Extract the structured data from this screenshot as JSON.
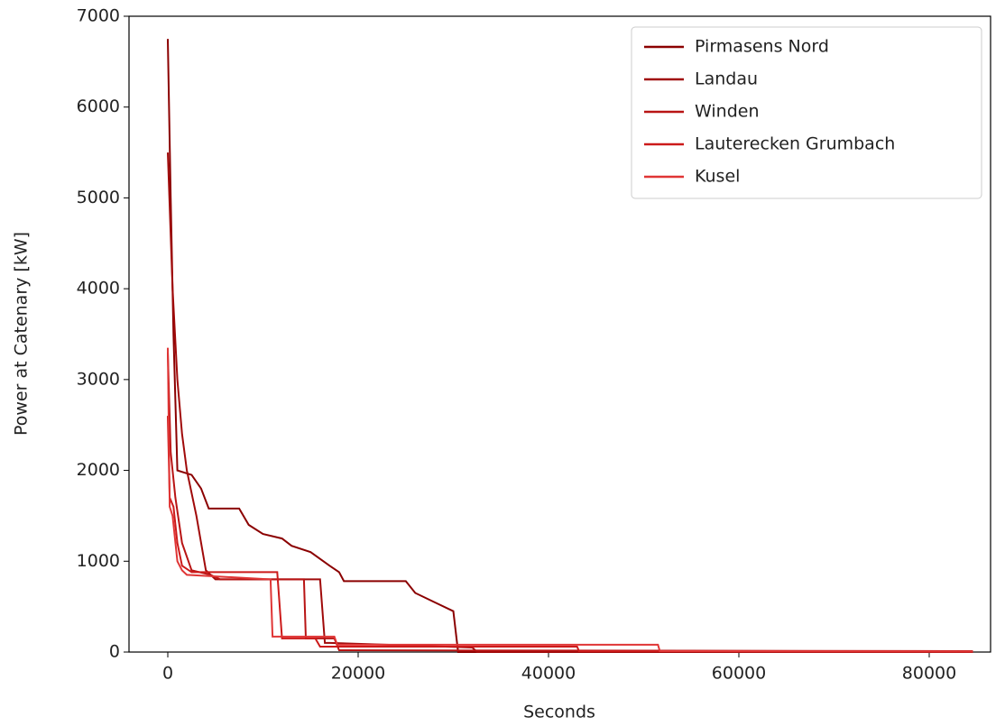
{
  "chart_data": {
    "type": "line",
    "x_label": "Seconds",
    "y_label": "Power at Catenary [kW]",
    "xlim": [
      -4076,
      86445
    ],
    "ylim": [
      0,
      7000
    ],
    "xticks": [
      0,
      20000,
      40000,
      60000,
      80000
    ],
    "yticks": [
      0,
      1000,
      2000,
      3000,
      4000,
      5000,
      6000,
      7000
    ],
    "legend": "upper right",
    "series": [
      {
        "name": "Pirmasens Nord",
        "color": "#8b0000",
        "x": [
          0,
          300,
          600,
          1000,
          2500,
          3500,
          4300,
          7500,
          8500,
          10000,
          12000,
          13000,
          15000,
          17000,
          18000,
          18500,
          25000,
          26000,
          28000,
          30000,
          30500,
          84600
        ],
        "values": [
          6750,
          5000,
          3500,
          2000,
          1950,
          1800,
          1580,
          1580,
          1400,
          1300,
          1250,
          1170,
          1100,
          950,
          880,
          780,
          780,
          650,
          550,
          450,
          0,
          0
        ]
      },
      {
        "name": "Landau",
        "color": "#a00a0a",
        "x": [
          0,
          500,
          1000,
          1500,
          2000,
          3000,
          4000,
          5000,
          16000,
          16500,
          17000,
          32000,
          32500,
          84600
        ],
        "values": [
          5500,
          4000,
          3000,
          2400,
          2000,
          1500,
          900,
          800,
          800,
          100,
          100,
          50,
          0,
          0
        ]
      },
      {
        "name": "Winden",
        "color": "#b81414",
        "x": [
          0,
          300,
          800,
          1500,
          2500,
          4500,
          5500,
          14300,
          14500,
          17500,
          18000,
          84600
        ],
        "values": [
          3300,
          2200,
          1700,
          1200,
          900,
          850,
          800,
          800,
          150,
          150,
          20,
          10
        ]
      },
      {
        "name": "Lauterecken Grumbach",
        "color": "#cc1a1a",
        "x": [
          0,
          200,
          600,
          1000,
          1500,
          2500,
          11500,
          12000,
          15500,
          16000,
          43000,
          43200,
          84600
        ],
        "values": [
          2600,
          1700,
          1600,
          1200,
          950,
          880,
          880,
          150,
          150,
          60,
          60,
          10,
          5
        ]
      },
      {
        "name": "Kusel",
        "color": "#e03535",
        "x": [
          0,
          200,
          500,
          1000,
          1500,
          2000,
          10800,
          11000,
          17500,
          17800,
          51500,
          51700,
          84600
        ],
        "values": [
          3350,
          1600,
          1500,
          1000,
          900,
          850,
          800,
          170,
          170,
          80,
          80,
          10,
          5
        ]
      }
    ]
  }
}
